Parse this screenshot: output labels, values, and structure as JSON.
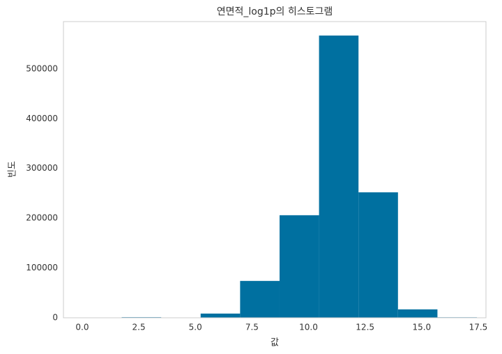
{
  "chart_data": {
    "type": "histogram",
    "title": "연면적_log1p의 히스토그램",
    "x_label": "값",
    "y_label": "빈도",
    "bins": [
      0,
      1.744,
      3.488,
      5.232,
      6.976,
      8.72,
      10.464,
      12.208,
      13.952,
      15.696,
      17.44
    ],
    "values": [
      300,
      1200,
      600,
      8400,
      74000,
      206000,
      567000,
      252000,
      16800,
      1000
    ],
    "color": "#0070a0",
    "xlim": [
      -0.83,
      17.84
    ],
    "ylim": [
      0,
      595000
    ],
    "xticks": [
      {
        "value": 0,
        "label": "0.0"
      },
      {
        "value": 2.5,
        "label": "2.5"
      },
      {
        "value": 5,
        "label": "5.0"
      },
      {
        "value": 7.5,
        "label": "7.5"
      },
      {
        "value": 10,
        "label": "10.0"
      },
      {
        "value": 12.5,
        "label": "12.5"
      },
      {
        "value": 15,
        "label": "15.0"
      },
      {
        "value": 17.5,
        "label": "17.5"
      }
    ],
    "yticks": [
      0,
      100000,
      200000,
      300000,
      400000,
      500000
    ],
    "grid": false
  }
}
